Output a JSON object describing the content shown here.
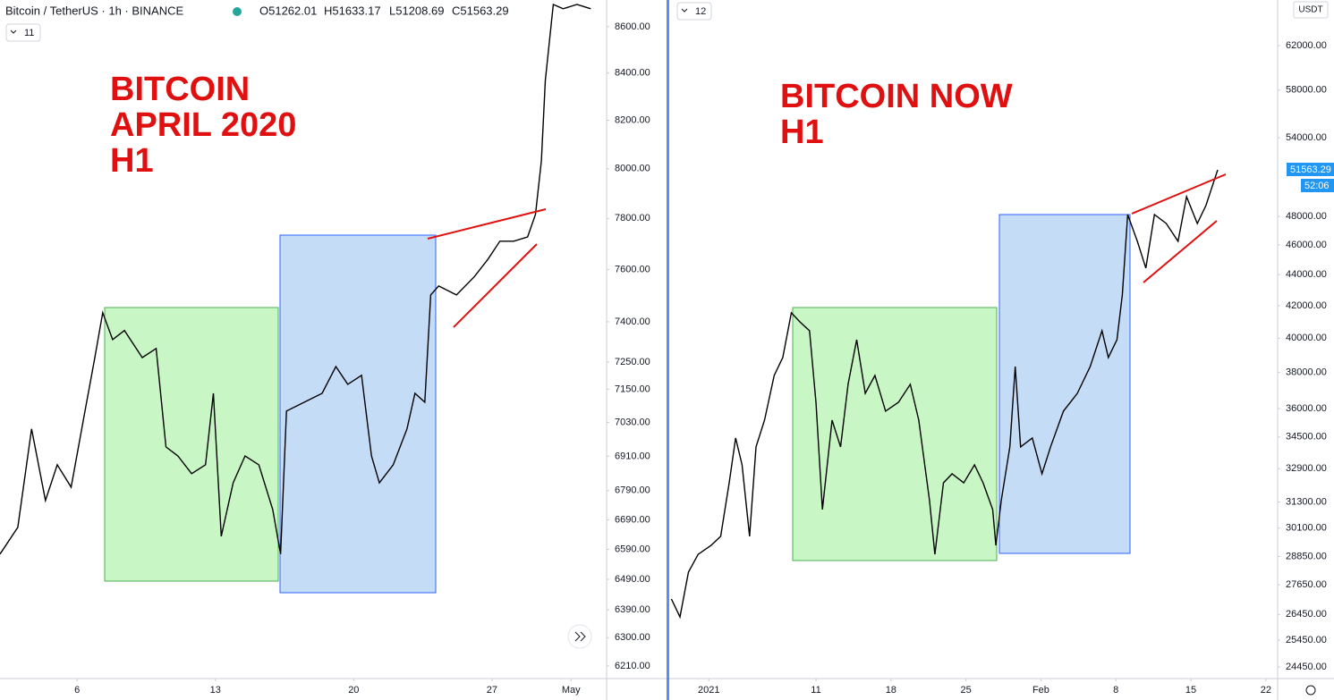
{
  "header": {
    "symbol": "Bitcoin / TetherUS · 1h · BINANCE",
    "open": "O51262.01",
    "high": "H51633.17",
    "low": "L51208.69",
    "close": "C51563.29"
  },
  "chart_data": [
    {
      "type": "line",
      "annotation": [
        "BITCOIN",
        "APRIL 2020",
        "H1"
      ],
      "interval_badge": "11",
      "color": "#000000",
      "log_scale": true,
      "x": [
        2.1,
        3.0,
        3.7,
        4.4,
        5.0,
        5.7,
        6.4,
        6.9,
        7.3,
        7.8,
        8.4,
        9.3,
        10.0,
        10.5,
        11.1,
        11.8,
        12.5,
        12.9,
        13.3,
        13.9,
        14.5,
        15.2,
        15.9,
        16.3,
        16.6,
        17.5,
        18.4,
        19.1,
        19.7,
        20.4,
        20.9,
        21.3,
        22.0,
        22.7,
        23.1,
        23.6,
        23.9,
        24.3,
        25.2,
        26.1,
        26.8,
        27.4,
        28.1,
        28.8,
        29.2,
        29.5,
        29.7,
        30.1,
        30.6,
        31.3,
        32.0
      ],
      "values": [
        6574,
        6664,
        7007,
        6756,
        6880,
        6802,
        7071,
        7266,
        7434,
        7333,
        7367,
        7266,
        7300,
        6943,
        6911,
        6849,
        6880,
        7135,
        6634,
        6817,
        6911,
        6880,
        6725,
        6574,
        7071,
        7103,
        7135,
        7233,
        7168,
        7201,
        6911,
        6817,
        6880,
        7007,
        7135,
        7103,
        7502,
        7536,
        7502,
        7571,
        7640,
        7710,
        7710,
        7727,
        7816,
        8032,
        8368,
        8698,
        8679,
        8698,
        8679
      ],
      "xlim": [
        2.1,
        32.8
      ],
      "ylim": [
        6173,
        8718
      ],
      "xticks": [
        6,
        13,
        20,
        27,
        {
          "value": 31,
          "label": "May"
        }
      ],
      "yticks": [
        {
          "value": 8600,
          "label": "8600.00"
        },
        {
          "value": 8400,
          "label": "8400.00"
        },
        {
          "value": 8200,
          "label": "8200.00"
        },
        {
          "value": 8000,
          "label": "8000.00"
        },
        {
          "value": 7800,
          "label": "7800.00"
        },
        {
          "value": 7600,
          "label": "7600.00"
        },
        {
          "value": 7400,
          "label": "7400.00"
        },
        {
          "value": 7250,
          "label": "7250.00"
        },
        {
          "value": 7150,
          "label": "7150.00"
        },
        {
          "value": 7030,
          "label": "7030.00"
        },
        {
          "value": 6910,
          "label": "6910.00"
        },
        {
          "value": 6790,
          "label": "6790.00"
        },
        {
          "value": 6690,
          "label": "6690.00"
        },
        {
          "value": 6590,
          "label": "6590.00"
        },
        {
          "value": 6490,
          "label": "6490.00"
        },
        {
          "value": 6390,
          "label": "6390.00"
        },
        {
          "value": 6300,
          "label": "6300.00"
        },
        {
          "value": 6210,
          "label": "6210.00"
        }
      ]
    },
    {
      "type": "line",
      "annotation": [
        "BITCOIN NOW",
        "H1"
      ],
      "interval_badge": "12",
      "color": "#000000",
      "log_scale": true,
      "currency": "USDT",
      "last_price_label": "51563.29",
      "countdown": "52:06",
      "x": [
        -2.5,
        -1.7,
        -0.9,
        0.0,
        1.2,
        2.1,
        2.9,
        3.5,
        4.1,
        4.8,
        5.4,
        6.2,
        7.1,
        7.9,
        8.7,
        9.5,
        10.4,
        11.0,
        11.6,
        12.5,
        13.3,
        14.0,
        14.8,
        15.6,
        16.5,
        17.5,
        18.7,
        19.8,
        20.6,
        21.6,
        22.1,
        22.9,
        23.7,
        24.8,
        25.8,
        26.6,
        27.5,
        27.8,
        28.3,
        29.1,
        29.6,
        30.1,
        31.2,
        32.1,
        32.9,
        34.1,
        35.4,
        36.6,
        37.7,
        38.3,
        39.1,
        39.6,
        40.1,
        41.0,
        41.8,
        42.6,
        43.7,
        44.8,
        45.6,
        46.6,
        47.4,
        48.5
      ],
      "values": [
        27070,
        26350,
        28180,
        28940,
        29330,
        29730,
        32210,
        34450,
        33090,
        29730,
        33990,
        35380,
        37830,
        38860,
        41550,
        40990,
        40450,
        36340,
        30950,
        35380,
        33990,
        37330,
        39910,
        36830,
        37830,
        35860,
        36340,
        37330,
        35380,
        31370,
        28940,
        32210,
        32650,
        32210,
        33090,
        32210,
        30950,
        29330,
        31370,
        33990,
        38340,
        33990,
        34450,
        32650,
        33990,
        35860,
        36830,
        38340,
        40450,
        38860,
        39910,
        42680,
        48140,
        46250,
        44430,
        48140,
        47500,
        46250,
        49445,
        47500,
        48790,
        51470
      ],
      "xlim": [
        -2.7,
        54.1
      ],
      "ylim": [
        24060,
        66380
      ],
      "xticks": [
        {
          "value": 1,
          "label": "2021"
        },
        11,
        18,
        25,
        {
          "value": 32,
          "label": "Feb"
        },
        {
          "value": 39,
          "label": "8"
        },
        {
          "value": 46,
          "label": "15"
        },
        {
          "value": 53,
          "label": "22"
        }
      ],
      "yticks": [
        {
          "value": 62000,
          "label": "62000.00"
        },
        {
          "value": 58000,
          "label": "58000.00"
        },
        {
          "value": 54000,
          "label": "54000.00"
        },
        {
          "value": 48000,
          "label": "48000.00"
        },
        {
          "value": 46000,
          "label": "46000.00"
        },
        {
          "value": 44000,
          "label": "44000.00"
        },
        {
          "value": 42000,
          "label": "42000.00"
        },
        {
          "value": 40000,
          "label": "40000.00"
        },
        {
          "value": 38000,
          "label": "38000.00"
        },
        {
          "value": 36000,
          "label": "36000.00"
        },
        {
          "value": 34500,
          "label": "34500.00"
        },
        {
          "value": 32900,
          "label": "32900.00"
        },
        {
          "value": 31300,
          "label": "31300.00"
        },
        {
          "value": 30100,
          "label": "30100.00"
        },
        {
          "value": 28850,
          "label": "28850.00"
        },
        {
          "value": 27650,
          "label": "27650.00"
        },
        {
          "value": 26450,
          "label": "26450.00"
        },
        {
          "value": 25450,
          "label": "25450.00"
        },
        {
          "value": 24450,
          "label": "24450.00"
        }
      ]
    }
  ]
}
